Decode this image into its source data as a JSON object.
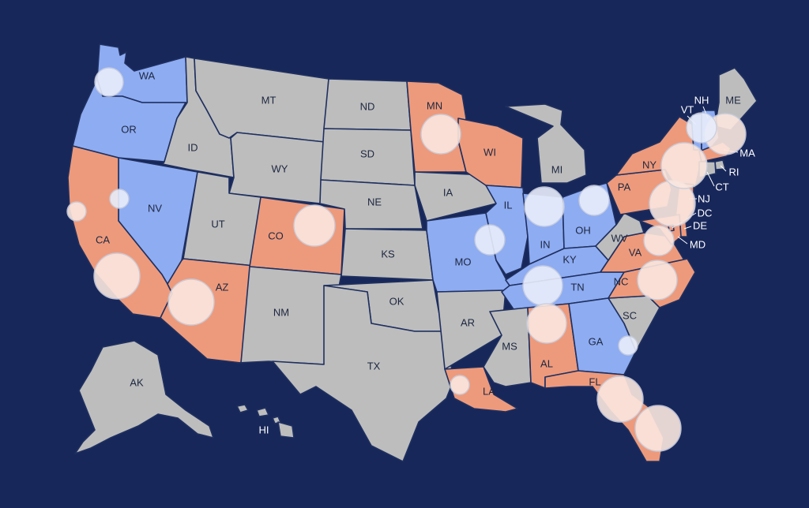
{
  "colors": {
    "background": "#18275a",
    "gray": "#bdbdbd",
    "blue": "#8eacf2",
    "orange": "#ed9a7c",
    "bubble_blue": "#e9eefb",
    "bubble_orange": "#fbe7df",
    "border": "#1f3060"
  },
  "states": [
    {
      "code": "WA",
      "label": "WA",
      "color": "blue"
    },
    {
      "code": "OR",
      "label": "OR",
      "color": "blue"
    },
    {
      "code": "CA",
      "label": "CA",
      "color": "orange"
    },
    {
      "code": "NV",
      "label": "NV",
      "color": "blue"
    },
    {
      "code": "ID",
      "label": "ID",
      "color": "gray"
    },
    {
      "code": "MT",
      "label": "MT",
      "color": "gray"
    },
    {
      "code": "WY",
      "label": "WY",
      "color": "gray"
    },
    {
      "code": "UT",
      "label": "UT",
      "color": "gray"
    },
    {
      "code": "AZ",
      "label": "AZ",
      "color": "orange"
    },
    {
      "code": "CO",
      "label": "CO",
      "color": "orange"
    },
    {
      "code": "NM",
      "label": "NM",
      "color": "gray"
    },
    {
      "code": "ND",
      "label": "ND",
      "color": "gray"
    },
    {
      "code": "SD",
      "label": "SD",
      "color": "gray"
    },
    {
      "code": "NE",
      "label": "NE",
      "color": "gray"
    },
    {
      "code": "KS",
      "label": "KS",
      "color": "gray"
    },
    {
      "code": "OK",
      "label": "OK",
      "color": "gray"
    },
    {
      "code": "TX",
      "label": "TX",
      "color": "gray"
    },
    {
      "code": "MN",
      "label": "MN",
      "color": "orange"
    },
    {
      "code": "IA",
      "label": "IA",
      "color": "gray"
    },
    {
      "code": "MO",
      "label": "MO",
      "color": "blue"
    },
    {
      "code": "AR",
      "label": "AR",
      "color": "gray"
    },
    {
      "code": "LA",
      "label": "LA",
      "color": "orange"
    },
    {
      "code": "WI",
      "label": "WI",
      "color": "orange"
    },
    {
      "code": "IL",
      "label": "IL",
      "color": "blue"
    },
    {
      "code": "MI",
      "label": "MI",
      "color": "gray"
    },
    {
      "code": "IN",
      "label": "IN",
      "color": "blue"
    },
    {
      "code": "OH",
      "label": "OH",
      "color": "blue"
    },
    {
      "code": "KY",
      "label": "KY",
      "color": "blue"
    },
    {
      "code": "TN",
      "label": "TN",
      "color": "blue"
    },
    {
      "code": "MS",
      "label": "MS",
      "color": "gray"
    },
    {
      "code": "AL",
      "label": "AL",
      "color": "orange"
    },
    {
      "code": "GA",
      "label": "GA",
      "color": "blue"
    },
    {
      "code": "FL",
      "label": "FL",
      "color": "orange"
    },
    {
      "code": "SC",
      "label": "SC",
      "color": "gray"
    },
    {
      "code": "NC",
      "label": "NC",
      "color": "orange"
    },
    {
      "code": "VA",
      "label": "VA",
      "color": "orange"
    },
    {
      "code": "WV",
      "label": "WV",
      "color": "gray"
    },
    {
      "code": "PA",
      "label": "PA",
      "color": "orange"
    },
    {
      "code": "NY",
      "label": "NY",
      "color": "orange"
    },
    {
      "code": "ME",
      "label": "ME",
      "color": "gray"
    },
    {
      "code": "VT",
      "label": "VT",
      "color": "blue"
    },
    {
      "code": "NH",
      "label": "NH",
      "color": "blue"
    },
    {
      "code": "MA",
      "label": "MA",
      "color": "orange"
    },
    {
      "code": "RI",
      "label": "RI",
      "color": "gray"
    },
    {
      "code": "CT",
      "label": "CT",
      "color": "gray"
    },
    {
      "code": "NJ",
      "label": "NJ",
      "color": "orange"
    },
    {
      "code": "DE",
      "label": "DE",
      "color": "orange"
    },
    {
      "code": "MD",
      "label": "MD",
      "color": "orange"
    },
    {
      "code": "DC",
      "label": "DC",
      "color": "orange"
    },
    {
      "code": "AK",
      "label": "AK",
      "color": "gray"
    },
    {
      "code": "HI",
      "label": "HI",
      "color": "gray"
    }
  ],
  "bubbles": [
    {
      "id": "seattle",
      "tone": "blue"
    },
    {
      "id": "reno",
      "tone": "blue"
    },
    {
      "id": "sf",
      "tone": "orange"
    },
    {
      "id": "la",
      "tone": "orange"
    },
    {
      "id": "phoenix",
      "tone": "orange"
    },
    {
      "id": "denver",
      "tone": "orange"
    },
    {
      "id": "minneapolis",
      "tone": "orange"
    },
    {
      "id": "chicago",
      "tone": "blue"
    },
    {
      "id": "st-louis",
      "tone": "blue"
    },
    {
      "id": "detroit",
      "tone": "blue"
    },
    {
      "id": "nashville",
      "tone": "blue"
    },
    {
      "id": "new-orleans",
      "tone": "orange"
    },
    {
      "id": "birmingham",
      "tone": "orange"
    },
    {
      "id": "atlanta",
      "tone": "blue"
    },
    {
      "id": "charleston",
      "tone": "blue"
    },
    {
      "id": "orlando",
      "tone": "orange"
    },
    {
      "id": "miami",
      "tone": "orange"
    },
    {
      "id": "raleigh",
      "tone": "orange"
    },
    {
      "id": "richmond",
      "tone": "orange"
    },
    {
      "id": "dc-metro",
      "tone": "orange"
    },
    {
      "id": "nyc",
      "tone": "orange"
    },
    {
      "id": "boston",
      "tone": "orange"
    },
    {
      "id": "new-hampshire",
      "tone": "blue"
    }
  ]
}
